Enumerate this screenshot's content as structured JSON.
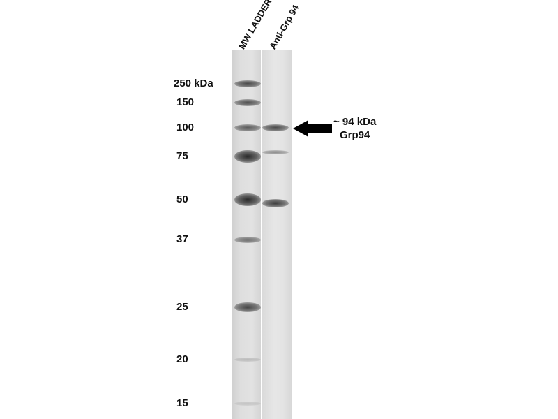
{
  "lanes": {
    "ladder": "MW LADDER",
    "sample": "Anti-Grp 94"
  },
  "markers": [
    {
      "label": "250 kDa",
      "kda": 250
    },
    {
      "label": "150",
      "kda": 150
    },
    {
      "label": "100",
      "kda": 100
    },
    {
      "label": "75",
      "kda": 75
    },
    {
      "label": "50",
      "kda": 50
    },
    {
      "label": "37",
      "kda": 37
    },
    {
      "label": "25",
      "kda": 25
    },
    {
      "label": "20",
      "kda": 20
    },
    {
      "label": "15",
      "kda": 15
    }
  ],
  "annotation": {
    "line1": "~ 94 kDa",
    "line2": "Grp94",
    "icon": "arrow-left-icon"
  },
  "sample_bands_kda": [
    94,
    80,
    50
  ]
}
